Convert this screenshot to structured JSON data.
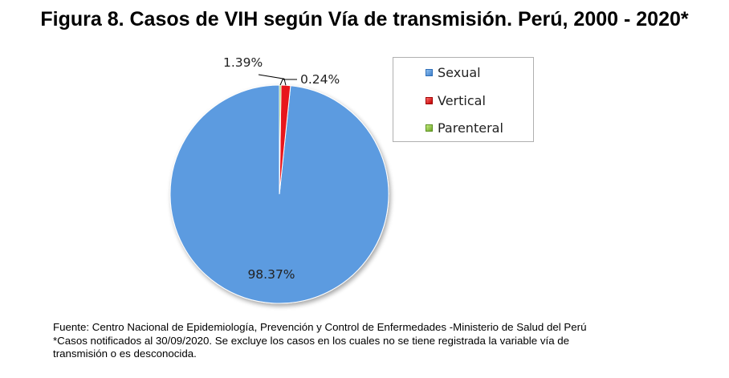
{
  "title": "Figura 8. Casos de VIH según Vía de transmisión. Perú, 2000 - 2020*",
  "chart_data": {
    "type": "pie",
    "title": "Figura 8. Casos de VIH según Vía de transmisión. Perú, 2000 - 2020*",
    "categories": [
      "Sexual",
      "Vertical",
      "Parenteral"
    ],
    "values": [
      98.37,
      1.39,
      0.24
    ],
    "labels": [
      "98.37%",
      "1.39%",
      "0.24%"
    ],
    "colors": [
      "#5b9be0",
      "#e8161b",
      "#8dc63f"
    ],
    "legend_position": "right"
  },
  "legend": [
    {
      "label": "Sexual",
      "color": "#5b9be0"
    },
    {
      "label": "Vertical",
      "color": "#e8161b"
    },
    {
      "label": "Parenteral",
      "color": "#8dc63f"
    }
  ],
  "footnote": {
    "line1": "Fuente: Centro Nacional de Epidemiología, Prevención y Control de Enfermedades -Ministerio de Salud del Perú",
    "line2": "*Casos notificados al 30/09/2020. Se excluye los casos en los cuales no se tiene registrada la variable vía de",
    "line3": "transmisión o es desconocida."
  }
}
